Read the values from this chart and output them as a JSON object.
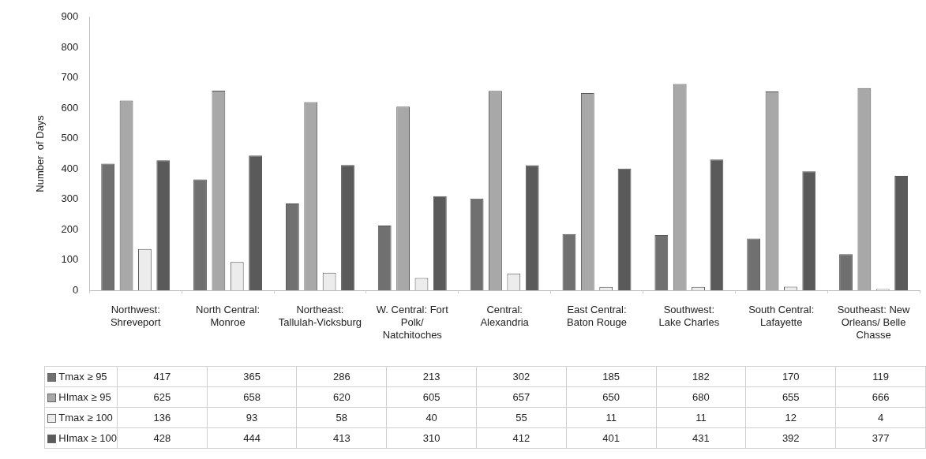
{
  "chart_data": {
    "type": "bar",
    "ylabel": "Number  of Days",
    "categories": [
      "Northwest: Shreveport",
      "North Central: Monroe",
      "Northeast: Tallulah-Vicksburg",
      "W. Central: Fort Polk/ Natchitoches",
      "Central: Alexandria",
      "East Central: Baton Rouge",
      "Southwest: Lake Charles",
      "South Central: Lafayette",
      "Southeast: New Orleans/ Belle Chasse"
    ],
    "series": [
      {
        "name": "Tmax ≥ 95",
        "color": "#707070",
        "values": [
          417,
          365,
          286,
          213,
          302,
          185,
          182,
          170,
          119
        ]
      },
      {
        "name": "HImax ≥ 95",
        "color": "#a8a8a8",
        "values": [
          625,
          658,
          620,
          605,
          657,
          650,
          680,
          655,
          666
        ]
      },
      {
        "name": "Tmax ≥ 100",
        "color": "#ececec",
        "values": [
          136,
          93,
          58,
          40,
          55,
          11,
          11,
          12,
          4
        ]
      },
      {
        "name": "HImax ≥ 100",
        "color": "#5a5a5a",
        "values": [
          428,
          444,
          413,
          310,
          412,
          401,
          431,
          392,
          377
        ]
      }
    ],
    "ylim": [
      0,
      900
    ],
    "yticks": [
      0,
      100,
      200,
      300,
      400,
      500,
      600,
      700,
      800,
      900
    ],
    "grid": false,
    "legend": "bottom",
    "data_labels": true
  }
}
